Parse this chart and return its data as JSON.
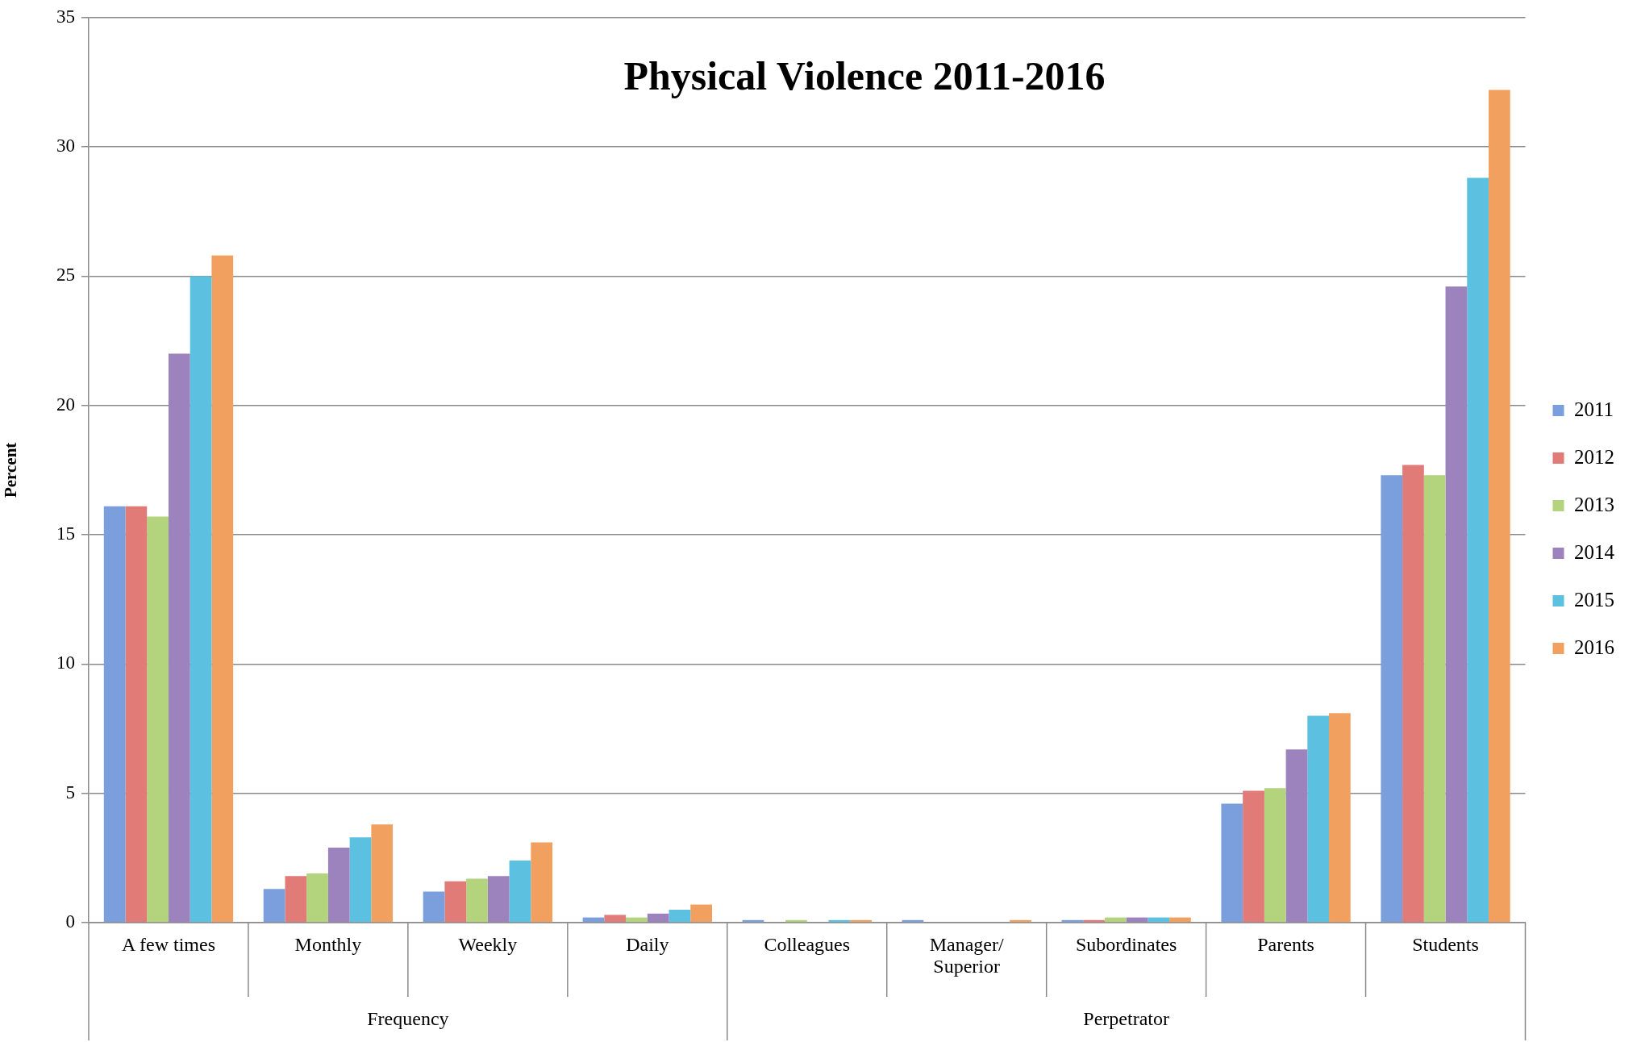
{
  "chart_data": {
    "type": "bar",
    "title": "Physical Violence 2011-2016",
    "ylabel": "Percent",
    "categories": [
      "A few times",
      "Monthly",
      "Weekly",
      "Daily",
      "Colleagues",
      "Manager/ Superior",
      "Subordinates",
      "Parents",
      "Students"
    ],
    "series": [
      {
        "name": "2011",
        "color": "#7a9fdc",
        "values": [
          16.1,
          1.3,
          1.2,
          0.2,
          0.1,
          0.1,
          0.1,
          4.6,
          17.3
        ]
      },
      {
        "name": "2012",
        "color": "#e07b78",
        "values": [
          16.1,
          1.8,
          1.6,
          0.3,
          0,
          0,
          0.1,
          5.1,
          17.7
        ]
      },
      {
        "name": "2013",
        "color": "#b3d37c",
        "values": [
          15.7,
          1.9,
          1.7,
          0.2,
          0.1,
          0,
          0.2,
          5.2,
          17.3
        ]
      },
      {
        "name": "2014",
        "color": "#9c83bd",
        "values": [
          22.0,
          2.9,
          1.8,
          0.35,
          0,
          0,
          0.2,
          6.7,
          24.6
        ]
      },
      {
        "name": "2015",
        "color": "#5cc0e0",
        "values": [
          25.0,
          3.3,
          2.4,
          0.5,
          0.1,
          0,
          0.2,
          8.0,
          28.8
        ]
      },
      {
        "name": "2016",
        "color": "#f2a060",
        "values": [
          25.8,
          3.8,
          3.1,
          0.7,
          0.1,
          0.1,
          0.2,
          8.1,
          32.2
        ]
      }
    ],
    "annotations": [
      "Frequency",
      "Perpetrator"
    ],
    "ylim": [
      0,
      35
    ],
    "yticks": [
      0,
      5,
      10,
      15,
      20,
      25,
      30,
      35
    ],
    "grid": "y",
    "legend": "right"
  }
}
